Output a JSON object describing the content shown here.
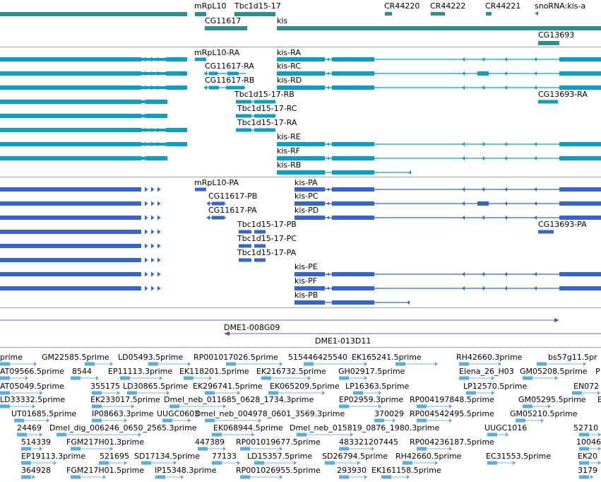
{
  "colors": {
    "gene": "#2f8f8f",
    "transcript": "#0aa0c4",
    "protein": "#3566cc",
    "clone": "#7b42a8",
    "est": "#5aaed8",
    "divider": "#a0a0a0"
  },
  "genes_track": {
    "labels": [
      "mRpL10",
      "Tbc1d15-17",
      "CR44220",
      "CR44222",
      "CR44221",
      "snoRNA:kis-a",
      "CG11617",
      "kis",
      "CG13693"
    ]
  },
  "transcripts_track": {
    "labels": [
      "mRpL10-RA",
      "kis-RA",
      "CG11617-RA",
      "kis-RC",
      "CG11617-RB",
      "kis-RD",
      "Tbc1d15-17-RB",
      "CG13693-RA",
      "Tbc1d15-17-RC",
      "Tbc1d15-17-RA",
      "kis-RE",
      "kis-RF",
      "kis-RB"
    ]
  },
  "proteins_track": {
    "labels": [
      "mRpL10-PA",
      "kis-PA",
      "CG11617-PB",
      "kis-PC",
      "CG11617-PA",
      "kis-PD",
      "Tbc1d15-17-PB",
      "CG13693-PA",
      "Tbc1d15-17-PC",
      "Tbc1d15-17-PA",
      "kis-PE",
      "kis-PF",
      "kis-PB"
    ]
  },
  "clones_track": {
    "labels": [
      "DME1-008G09",
      "DME1-013D11"
    ]
  },
  "est_track": {
    "rows": [
      [
        "prime",
        "GM22585.5prime",
        "LD05493.5prime",
        "RP001017026.5prime",
        "515446425540",
        "EK165241.5prime",
        "RH42660.3prime",
        "bs57g11.5pr"
      ],
      [
        "AT09566.5prime",
        "8544",
        "EP11113.3prime",
        "EK118201.5prime",
        "EK216732.5prime",
        "GH02917.5prime",
        "Elena_26_H03",
        "GM05208.5prime",
        "P"
      ],
      [
        "AT05049.5prime",
        "355175",
        "LD30865.5prime",
        "EK296741.5prime",
        "EK065209.5prime",
        "LP16363.5prime",
        "LP12570.5prime",
        "EN072"
      ],
      [
        "LD33332.5prime",
        "EK233017.5prime",
        "Dmel_neb_011685_0628_1734.3prime",
        "EP02959.3prime",
        "RP004197848.5prime",
        "GM05295.5prime",
        "E"
      ],
      [
        "UT01685.5prime",
        "IP08663.3prime",
        "UUGC0603",
        "Dmel_neb_004978_0601_3569.3prime",
        "370029",
        "RP004542495.5prime",
        "GM05210.5prime"
      ],
      [
        "24469",
        "Dmel_dig_006246_0650_2565.3prime",
        "EK068944.5prime",
        "Dmel_neb_015819_0876_1980.3prime",
        "UUGC1016",
        "52710"
      ],
      [
        "514339",
        "FGM217H01.3prime",
        "447389",
        "RP001019677.5prime",
        "483321207445",
        "RP004236187.5prime",
        "10046"
      ],
      [
        "EP19113.3prime",
        "521695",
        "SD17134.5prime",
        "77133",
        "LD15357.5prime",
        "SD26794.5prime",
        "RH42660.5prime",
        "EC31553.5prime",
        "EK20"
      ],
      [
        "364928",
        "FGM217H01.5prime",
        "IP15348.3prime",
        "RP001026955.5prime",
        "293930",
        "EK161158.5prime",
        "3179"
      ]
    ]
  }
}
